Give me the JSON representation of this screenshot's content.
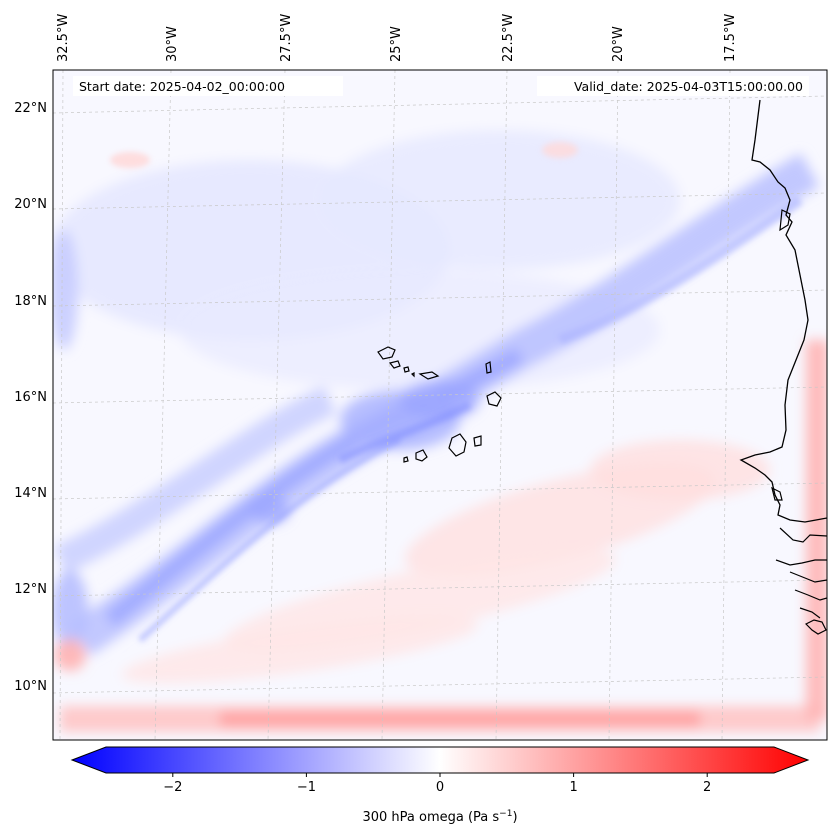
{
  "map": {
    "start_date": "Start date: 2025-04-02_00:00:00",
    "valid_date": "Valid_date: 2025-04-03T15:00:00.00",
    "lon_labels": [
      "32.5°W",
      "30°W",
      "27.5°W",
      "25°W",
      "22.5°W",
      "20°W",
      "17.5°W"
    ],
    "lat_labels": [
      "22°N",
      "20°N",
      "18°N",
      "16°N",
      "14°N",
      "12°N",
      "10°N"
    ]
  },
  "colorbar": {
    "label_prefix": "300 hPa omega (Pa s",
    "label_exp": "−1",
    "label_suffix": ")",
    "tick_labels": [
      "−2",
      "−1",
      "0",
      "1",
      "2"
    ],
    "tick_values": [
      -2,
      -1,
      0,
      1,
      2
    ],
    "range": [
      -2.5,
      2.5
    ],
    "neg_color": "#0000ff",
    "zero_color": "#ffffff",
    "pos_color": "#ff0000"
  },
  "colors": {
    "grid": "#bfbfbf",
    "coast": "#000000",
    "ocean_base": "#f7f7ff"
  }
}
